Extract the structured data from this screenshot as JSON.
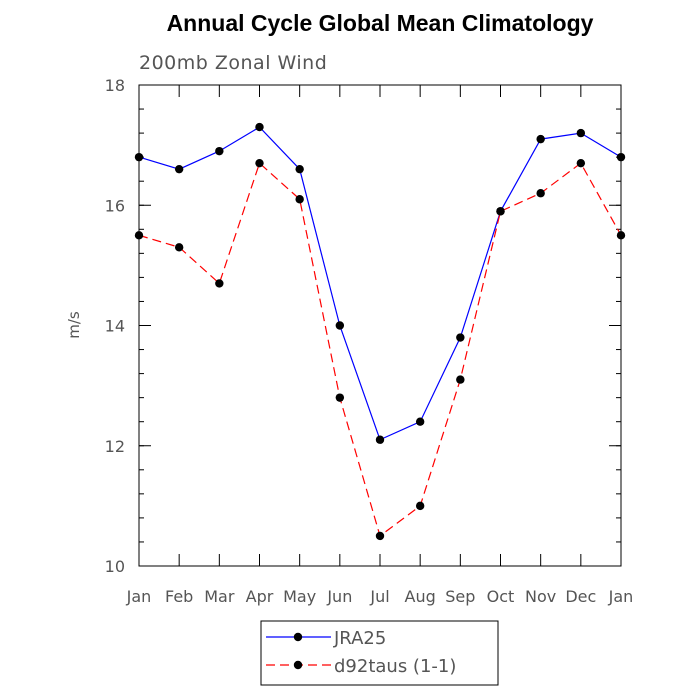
{
  "chart_data": {
    "type": "line",
    "title": "Annual Cycle Global Mean Climatology",
    "subtitle": "200mb Zonal Wind",
    "xlabel": "",
    "ylabel": "m/s",
    "categories": [
      "Jan",
      "Feb",
      "Mar",
      "Apr",
      "May",
      "Jun",
      "Jul",
      "Aug",
      "Sep",
      "Oct",
      "Nov",
      "Dec",
      "Jan"
    ],
    "ylim": [
      10,
      18
    ],
    "yticks": [
      10,
      12,
      14,
      16,
      18
    ],
    "legend_position": "bottom-center",
    "series": [
      {
        "name": "JRA25",
        "color": "#0000ff",
        "dash": "solid",
        "values": [
          16.8,
          16.6,
          16.9,
          17.3,
          16.6,
          14.0,
          12.1,
          12.4,
          13.8,
          15.9,
          17.1,
          17.2,
          16.8
        ]
      },
      {
        "name": "d92taus (1-1)",
        "color": "#ff0000",
        "dash": "dashed",
        "values": [
          15.5,
          15.3,
          14.7,
          16.7,
          16.1,
          12.8,
          10.5,
          11.0,
          13.1,
          15.9,
          16.2,
          16.7,
          15.5
        ]
      }
    ]
  }
}
